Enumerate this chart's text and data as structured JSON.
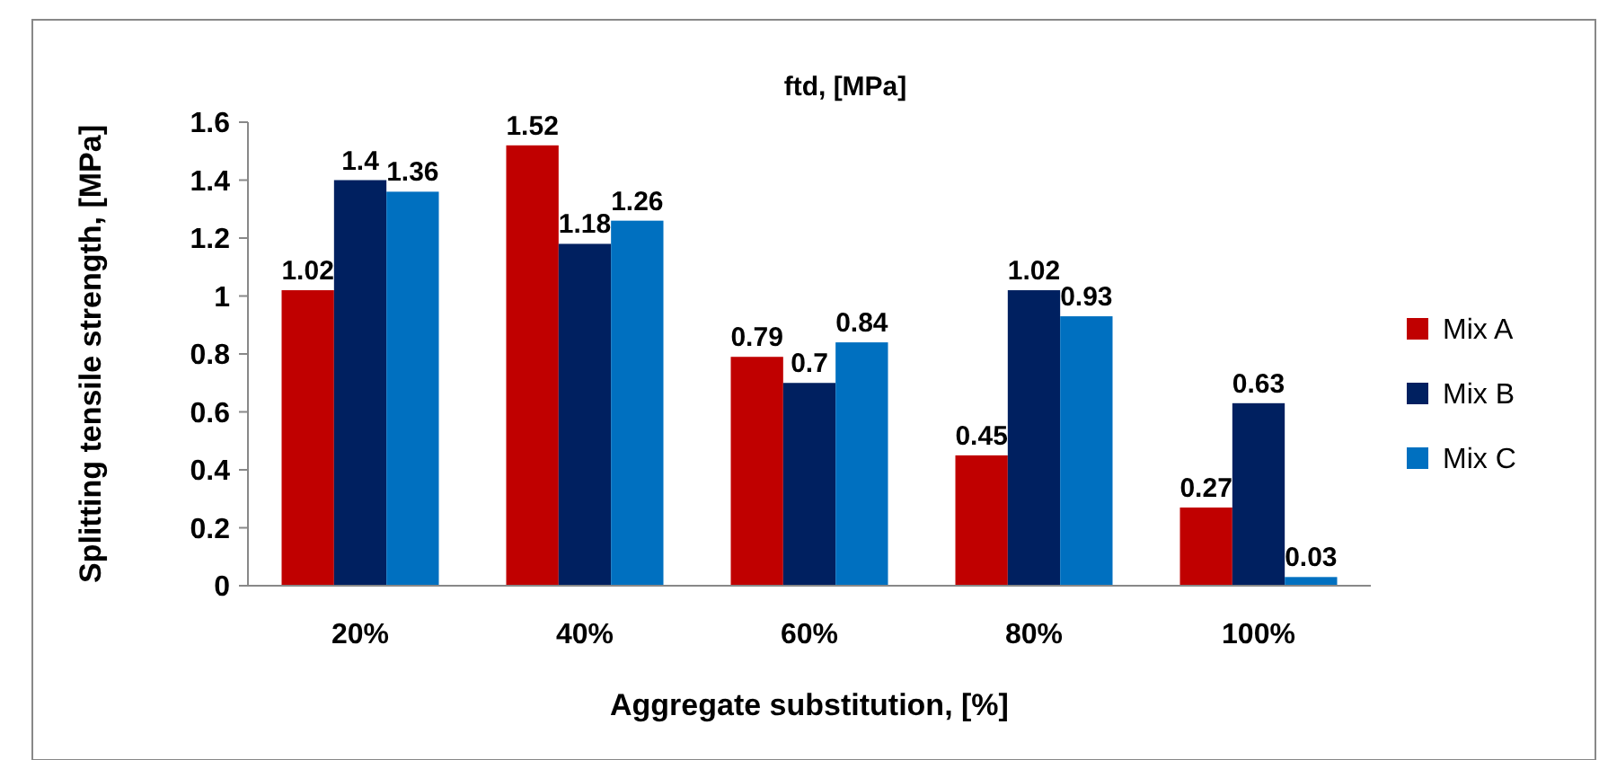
{
  "chart_data": {
    "type": "bar",
    "title": "ftd, [MPa]",
    "xlabel": "Aggregate substitution, [%]",
    "ylabel": "Splitting tensile strength, [MPa]",
    "categories": [
      "20%",
      "40%",
      "60%",
      "80%",
      "100%"
    ],
    "series": [
      {
        "name": "Mix A",
        "color": "#c00000",
        "values": [
          1.02,
          1.52,
          0.79,
          0.45,
          0.27
        ]
      },
      {
        "name": "Mix B",
        "color": "#002060",
        "values": [
          1.4,
          1.18,
          0.7,
          1.02,
          0.63
        ]
      },
      {
        "name": "Mix C",
        "color": "#0070c0",
        "values": [
          1.36,
          1.26,
          0.84,
          0.93,
          0.03
        ]
      }
    ],
    "ylim": [
      0,
      1.6
    ],
    "yticks": [
      0,
      {
        "value": 0.2,
        "label": "0.2"
      },
      {
        "value": 0.4,
        "label": "0.4"
      },
      {
        "value": 0.6,
        "label": "0.6"
      },
      {
        "value": 0.8,
        "label": "0.8"
      },
      1,
      {
        "value": 1.2,
        "label": "1.2"
      },
      {
        "value": 1.4,
        "label": "1.4"
      },
      {
        "value": 1.6,
        "label": "1.6"
      }
    ],
    "data_labels": true,
    "legend": "right",
    "grid": false
  }
}
